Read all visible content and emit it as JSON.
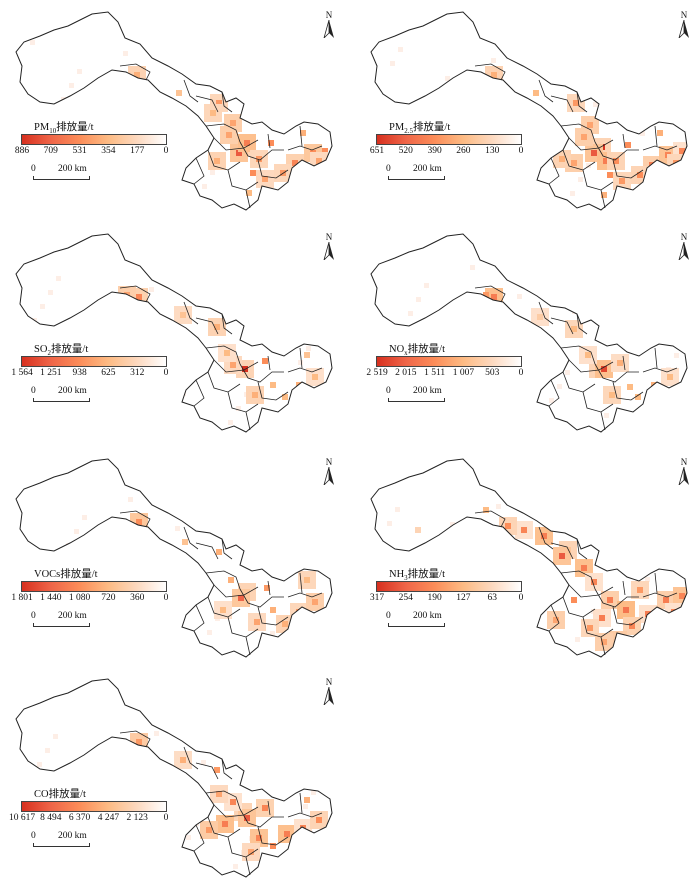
{
  "north_label": "N",
  "scale": {
    "zero": "0",
    "distance": "200 km"
  },
  "palette": {
    "high": "#d7301f",
    "mid": "#fc8d59",
    "low": "#fdd9bf",
    "zero": "#ffffff"
  },
  "panels": [
    {
      "id": "pm10",
      "title_main": "PM",
      "title_sub": "10",
      "title_suffix": "排放量/t",
      "ticks": [
        "886",
        "709",
        "531",
        "354",
        "177",
        "0"
      ]
    },
    {
      "id": "pm25",
      "title_main": "PM",
      "title_sub": "2.5",
      "title_suffix": "排放量/t",
      "ticks": [
        "651",
        "520",
        "390",
        "260",
        "130",
        "0"
      ]
    },
    {
      "id": "so2",
      "title_main": "SO",
      "title_sub": "2",
      "title_suffix": "排放量/t",
      "ticks": [
        "1 564",
        "1 251",
        "938",
        "625",
        "312",
        "0"
      ]
    },
    {
      "id": "nox",
      "title_main": "NO",
      "title_sub": "x",
      "title_suffix": "排放量/t",
      "ticks": [
        "2 519",
        "2 015",
        "1 511",
        "1 007",
        "503",
        "0"
      ]
    },
    {
      "id": "vocs",
      "title_main": "VOCs",
      "title_sub": "",
      "title_suffix": "排放量/t",
      "ticks": [
        "1 801",
        "1 440",
        "1 080",
        "720",
        "360",
        "0"
      ]
    },
    {
      "id": "nh3",
      "title_main": "NH",
      "title_sub": "3",
      "title_suffix": "排放量/t",
      "ticks": [
        "317",
        "254",
        "190",
        "127",
        "63",
        "0"
      ]
    },
    {
      "id": "co",
      "title_main": "CO",
      "title_sub": "",
      "title_suffix": "排放量/t",
      "ticks": [
        "10 617",
        "8 494",
        "6 370",
        "4 247",
        "2 123",
        "0"
      ]
    }
  ]
}
